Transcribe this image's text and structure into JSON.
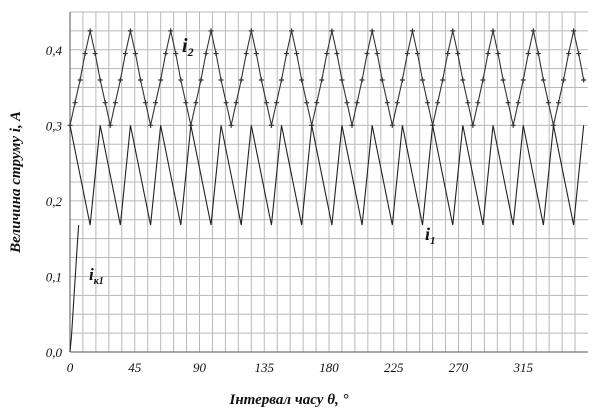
{
  "chart_data": {
    "type": "line",
    "title": "",
    "xlabel": "Інтервал часу θ, °",
    "ylabel": "Величина струму i, A",
    "xlim": [
      0,
      360
    ],
    "ylim": [
      0,
      0.45
    ],
    "x_ticks": [
      "0",
      "45",
      "90",
      "135",
      "180",
      "225",
      "270",
      "315"
    ],
    "y_ticks": [
      "0,0",
      "0,1",
      "0,2",
      "0,3",
      "0,4"
    ],
    "grid": true,
    "series": [
      {
        "name": "i₂",
        "label_main": "i",
        "label_sub": "2",
        "style": "line-with-markers",
        "marker": "+",
        "color": "#333333",
        "x": [
          0,
          3.5,
          7,
          10.5,
          14,
          17.5,
          21,
          24.5,
          28,
          31.5,
          35,
          38.5,
          42,
          45.5,
          49,
          52.5,
          56,
          59.5,
          63,
          66.5,
          70,
          73.5,
          77,
          80.5,
          84,
          87.5,
          91,
          94.5,
          98,
          101.5,
          105,
          108.5,
          112,
          115.5,
          119,
          122.5,
          126,
          129.5,
          133,
          136.5,
          140,
          143.5,
          147,
          150.5,
          154,
          157.5,
          161,
          164.5,
          168,
          171.5,
          175,
          178.5,
          182,
          185.5,
          189,
          192.5,
          196,
          199.5,
          203,
          206.5,
          210,
          213.5,
          217,
          220.5,
          224,
          227.5,
          231,
          234.5,
          238,
          241.5,
          245,
          248.5,
          252,
          255.5,
          259,
          262.5,
          266,
          269.5,
          273,
          276.5,
          280,
          283.5,
          287,
          290.5,
          294,
          297.5,
          301,
          304.5,
          308,
          311.5,
          315,
          318.5,
          322,
          325.5,
          329,
          332.5,
          336,
          339.5,
          343,
          346.5,
          350,
          353.5,
          357
        ],
        "values": [
          0.3,
          0.33,
          0.36,
          0.395,
          0.425,
          0.395,
          0.36,
          0.33,
          0.3,
          0.33,
          0.36,
          0.395,
          0.425,
          0.395,
          0.36,
          0.33,
          0.3,
          0.33,
          0.36,
          0.395,
          0.425,
          0.395,
          0.36,
          0.33,
          0.3,
          0.33,
          0.36,
          0.395,
          0.425,
          0.395,
          0.36,
          0.33,
          0.3,
          0.33,
          0.36,
          0.395,
          0.425,
          0.395,
          0.36,
          0.33,
          0.3,
          0.33,
          0.36,
          0.395,
          0.425,
          0.395,
          0.36,
          0.33,
          0.3,
          0.33,
          0.36,
          0.395,
          0.425,
          0.395,
          0.36,
          0.33,
          0.3,
          0.33,
          0.36,
          0.395,
          0.425,
          0.395,
          0.36,
          0.33,
          0.3,
          0.33,
          0.36,
          0.395,
          0.425,
          0.395,
          0.36,
          0.33,
          0.3,
          0.33,
          0.36,
          0.395,
          0.425,
          0.395,
          0.36,
          0.33,
          0.3,
          0.33,
          0.36,
          0.395,
          0.425,
          0.395,
          0.36,
          0.33,
          0.3,
          0.33,
          0.36,
          0.395,
          0.425,
          0.395,
          0.36,
          0.33,
          0.3,
          0.33,
          0.36,
          0.395,
          0.425,
          0.395,
          0.36
        ]
      },
      {
        "name": "i₁",
        "label_main": "i",
        "label_sub": "1",
        "style": "line",
        "color": "#222222",
        "x": [
          0,
          14,
          21,
          35,
          42,
          56,
          63,
          77,
          84,
          98,
          105,
          119,
          126,
          140,
          147,
          161,
          168,
          182,
          189,
          203,
          210,
          224,
          231,
          245,
          252,
          266,
          273,
          287,
          294,
          308,
          315,
          329,
          336,
          350,
          357
        ],
        "values": [
          0.3,
          0.168,
          0.3,
          0.168,
          0.3,
          0.168,
          0.3,
          0.168,
          0.3,
          0.168,
          0.3,
          0.168,
          0.3,
          0.168,
          0.3,
          0.168,
          0.3,
          0.168,
          0.3,
          0.168,
          0.3,
          0.168,
          0.3,
          0.168,
          0.3,
          0.168,
          0.3,
          0.168,
          0.3,
          0.168,
          0.3,
          0.168,
          0.3,
          0.168,
          0.3
        ]
      },
      {
        "name": "iк1",
        "label_main": "i",
        "label_sub": "к1",
        "style": "line",
        "color": "#222222",
        "x": [
          0,
          1,
          2,
          3,
          4,
          5,
          6
        ],
        "values": [
          0.0,
          0.02,
          0.05,
          0.08,
          0.11,
          0.14,
          0.168
        ]
      }
    ]
  }
}
